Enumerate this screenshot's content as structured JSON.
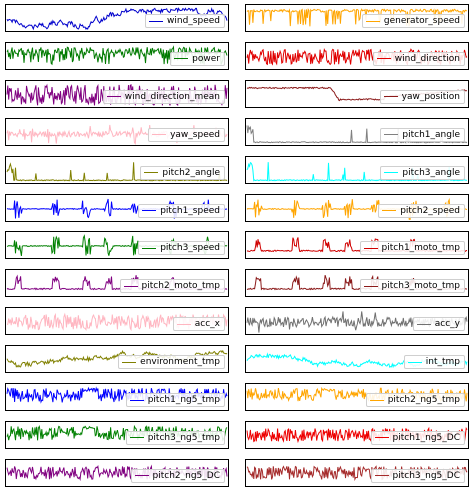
{
  "chart_data": {
    "type": "line",
    "title": "",
    "grid": false,
    "legend_placement": "lower-right",
    "panels": [
      {
        "name": "wind_speed",
        "color": "#0000cc",
        "pattern": "walk"
      },
      {
        "name": "generator_speed",
        "color": "#ffa500",
        "pattern": "high_switch"
      },
      {
        "name": "power",
        "color": "#007a00",
        "pattern": "dense_top"
      },
      {
        "name": "wind_direction",
        "color": "#e00000",
        "pattern": "noise_band"
      },
      {
        "name": "wind_direction_mean",
        "color": "#800080",
        "pattern": "noise_band_wide"
      },
      {
        "name": "yaw_position",
        "color": "#8b1a1a",
        "pattern": "steps"
      },
      {
        "name": "yaw_speed",
        "color": "#ffb6c1",
        "pattern": "spiky_mid"
      },
      {
        "name": "pitch1_angle",
        "color": "#808080",
        "pattern": "low_spikes"
      },
      {
        "name": "pitch2_angle",
        "color": "#808000",
        "pattern": "low_spikes"
      },
      {
        "name": "pitch3_angle",
        "color": "#00ffff",
        "pattern": "low_spikes"
      },
      {
        "name": "pitch1_speed",
        "color": "#0000ff",
        "pattern": "burst_mid"
      },
      {
        "name": "pitch2_speed",
        "color": "#ffa500",
        "pattern": "burst_mid"
      },
      {
        "name": "pitch3_speed",
        "color": "#008000",
        "pattern": "burst_mid"
      },
      {
        "name": "pitch1_moto_tmp",
        "color": "#d00000",
        "pattern": "temp"
      },
      {
        "name": "pitch2_moto_tmp",
        "color": "#800080",
        "pattern": "temp"
      },
      {
        "name": "pitch3_moto_tmp",
        "color": "#8b1a1a",
        "pattern": "temp"
      },
      {
        "name": "acc_x",
        "color": "#ffb6c1",
        "pattern": "noise_band"
      },
      {
        "name": "acc_y",
        "color": "#707070",
        "pattern": "noise_band_spiky"
      },
      {
        "name": "environment_tmp",
        "color": "#808000",
        "pattern": "env"
      },
      {
        "name": "int_tmp",
        "color": "#00ffff",
        "pattern": "env"
      },
      {
        "name": "pitch1_ng5_tmp",
        "color": "#0000ff",
        "pattern": "ng5_tmp"
      },
      {
        "name": "pitch2_ng5_tmp",
        "color": "#ffa500",
        "pattern": "ng5_tmp"
      },
      {
        "name": "pitch3_ng5_tmp",
        "color": "#008000",
        "pattern": "ng5_tmp"
      },
      {
        "name": "pitch1_ng5_DC",
        "color": "#ee0000",
        "pattern": "solid_band"
      },
      {
        "name": "pitch2_ng5_DC",
        "color": "#800080",
        "pattern": "solid_band"
      },
      {
        "name": "pitch3_ng5_DC",
        "color": "#a52a2a",
        "pattern": "solid_band"
      }
    ]
  }
}
